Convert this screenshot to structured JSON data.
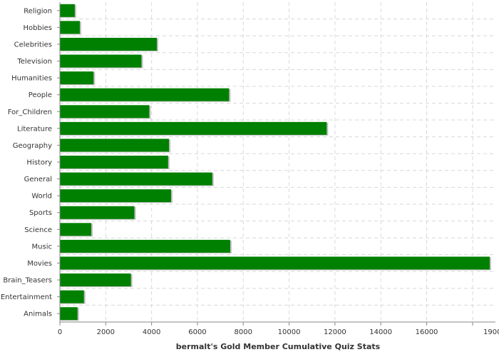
{
  "chart_data": {
    "type": "bar",
    "orientation": "horizontal",
    "title": "",
    "xlabel": "bermalt's Gold Member Cumulative Quiz Stats",
    "ylabel": "",
    "xlim": [
      0,
      19000
    ],
    "x_ticks": [
      0,
      2000,
      4000,
      6000,
      8000,
      10000,
      12000,
      14000,
      16000
    ],
    "x_tick_labels": [
      "0",
      "2000",
      "4000",
      "6000",
      "8000",
      "10000",
      "12000",
      "14000",
      "16000"
    ],
    "last_tick_label": "1900",
    "grid": true,
    "legend": "none",
    "categories": [
      "Religion",
      "Hobbies",
      "Celebrities",
      "Television",
      "Humanities",
      "People",
      "For_Children",
      "Literature",
      "Geography",
      "History",
      "General",
      "World",
      "Sports",
      "Science",
      "Music",
      "Movies",
      "Brain_Teasers",
      "Entertainment",
      "Animals"
    ],
    "values": [
      650,
      870,
      4230,
      3560,
      1470,
      7380,
      3900,
      11640,
      4760,
      4720,
      6650,
      4850,
      3250,
      1370,
      7430,
      18750,
      3100,
      1050,
      770
    ],
    "bar_color": "#008000",
    "shadow_color": "#c0c0c0"
  }
}
